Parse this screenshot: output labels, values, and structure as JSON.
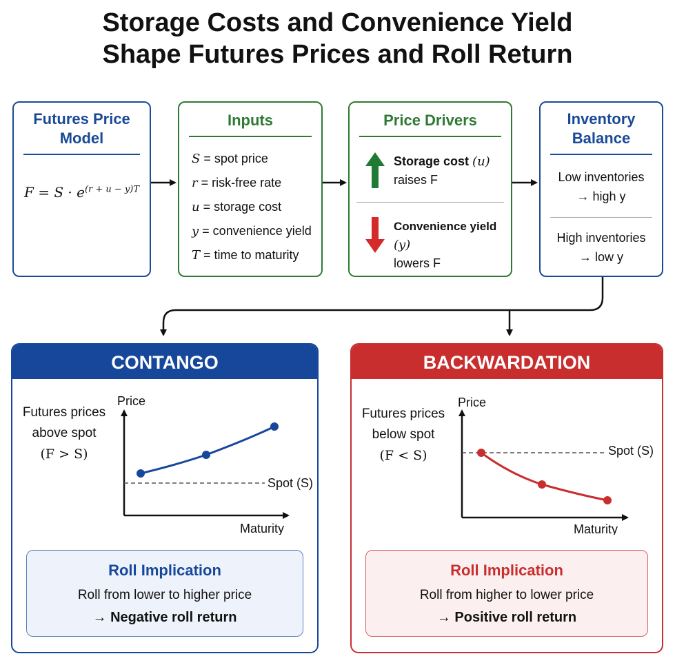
{
  "title_line1": "Storage Costs and Convenience Yield",
  "title_line2": "Shape Futures Prices and Roll Return",
  "model": {
    "title_line1": "Futures Price",
    "title_line2": "Model",
    "formula_base": "F = S · e",
    "formula_exp": "(r + u − y)T"
  },
  "inputs": {
    "title": "Inputs",
    "items": [
      {
        "sym": "S",
        "desc": " = spot price"
      },
      {
        "sym": "r",
        "desc": " = risk-free rate"
      },
      {
        "sym": "u",
        "desc": " = storage cost"
      },
      {
        "sym": "y",
        "desc": " = convenience yield"
      },
      {
        "sym": "T",
        "desc": " = time to maturity"
      }
    ]
  },
  "drivers": {
    "title": "Price Drivers",
    "up_bold": "Storage cost",
    "up_sym": "(u)",
    "up_line2": "raises F",
    "down_bold": "Convenience yield",
    "down_sym": "(y)",
    "down_line2": "lowers F"
  },
  "inventory": {
    "title_line1": "Inventory",
    "title_line2": "Balance",
    "low_line1": "Low inventories",
    "low_line2": "→ high y",
    "high_line1": "High inventories",
    "high_line2": "→ low y"
  },
  "contango": {
    "header": "CONTANGO",
    "desc_line1": "Futures prices",
    "desc_line2": "above spot",
    "desc_line3": "(F > S)",
    "y_label": "Price",
    "x_label": "Maturity",
    "spot_label": "Spot (S)",
    "roll_title": "Roll Implication",
    "roll_line": "Roll from lower to higher price",
    "roll_result": "→ Negative roll return"
  },
  "backwardation": {
    "header": "BACKWARDATION",
    "desc_line1": "Futures prices",
    "desc_line2": "below spot",
    "desc_line3": "(F < S)",
    "y_label": "Price",
    "x_label": "Maturity",
    "spot_label": "Spot (S)",
    "roll_title": "Roll Implication",
    "roll_line": "Roll from higher to lower price",
    "roll_result": "→ Positive roll return"
  },
  "colors": {
    "blue": "#1a4a96",
    "green": "#2f7a33",
    "red": "#cc2b2b",
    "panel_blue": "#17479b",
    "panel_red": "#c92e2e"
  }
}
